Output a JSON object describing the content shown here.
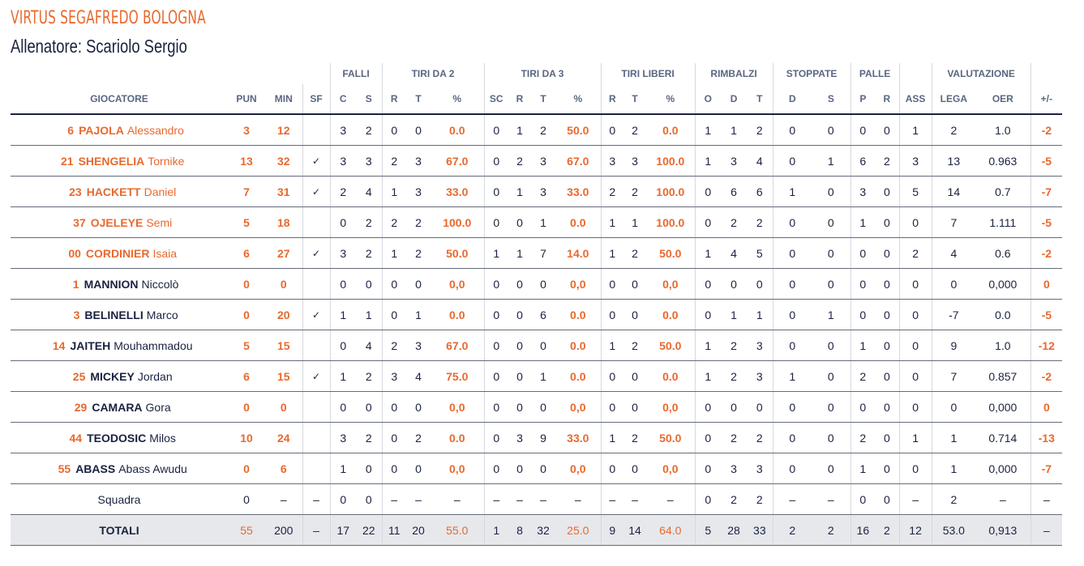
{
  "team": {
    "name": "VIRTUS SEGAFREDO BOLOGNA",
    "coach": "Allenatore: Scariolo Sergio"
  },
  "headers": {
    "groups": {
      "falli": "FALLI",
      "tiri2": "TIRI DA 2",
      "tiri3": "TIRI DA 3",
      "liberi": "TIRI LIBERI",
      "rimbalzi": "RIMBALZI",
      "stoppate": "STOPPATE",
      "palle": "PALLE",
      "valutazione": "VALUTAZIONE"
    },
    "columns": [
      "GIOCATORE",
      "PUN",
      "MIN",
      "SF",
      "C",
      "S",
      "R",
      "T",
      "%",
      "SC",
      "R",
      "T",
      "%",
      "R",
      "T",
      "%",
      "O",
      "D",
      "T",
      "D",
      "S",
      "P",
      "R",
      "ASS",
      "LEGA",
      "OER",
      "+/-"
    ]
  },
  "players": [
    {
      "num": "6",
      "last": "PAJOLA",
      "first": "Alessandro",
      "style": "orange",
      "stats": [
        "3",
        "12",
        "",
        "3",
        "2",
        "0",
        "0",
        "0.0",
        "0",
        "1",
        "2",
        "50.0",
        "0",
        "2",
        "0.0",
        "1",
        "1",
        "2",
        "0",
        "0",
        "0",
        "0",
        "1",
        "2",
        "1.0",
        "-2"
      ]
    },
    {
      "num": "21",
      "last": "SHENGELIA",
      "first": "Tornike",
      "style": "orange",
      "stats": [
        "13",
        "32",
        "✓",
        "3",
        "3",
        "2",
        "3",
        "67.0",
        "0",
        "2",
        "3",
        "67.0",
        "3",
        "3",
        "100.0",
        "1",
        "3",
        "4",
        "0",
        "1",
        "6",
        "2",
        "3",
        "13",
        "0.963",
        "-5"
      ]
    },
    {
      "num": "23",
      "last": "HACKETT",
      "first": "Daniel",
      "style": "orange",
      "stats": [
        "7",
        "31",
        "✓",
        "2",
        "4",
        "1",
        "3",
        "33.0",
        "0",
        "1",
        "3",
        "33.0",
        "2",
        "2",
        "100.0",
        "0",
        "6",
        "6",
        "1",
        "0",
        "3",
        "0",
        "5",
        "14",
        "0.7",
        "-7"
      ]
    },
    {
      "num": "37",
      "last": "OJELEYE",
      "first": "Semi",
      "style": "orange",
      "stats": [
        "5",
        "18",
        "",
        "0",
        "2",
        "2",
        "2",
        "100.0",
        "0",
        "0",
        "1",
        "0.0",
        "1",
        "1",
        "100.0",
        "0",
        "2",
        "2",
        "0",
        "0",
        "1",
        "0",
        "0",
        "7",
        "1.111",
        "-5"
      ]
    },
    {
      "num": "00",
      "last": "CORDINIER",
      "first": "Isaia",
      "style": "orange",
      "stats": [
        "6",
        "27",
        "✓",
        "3",
        "2",
        "1",
        "2",
        "50.0",
        "1",
        "1",
        "7",
        "14.0",
        "1",
        "2",
        "50.0",
        "1",
        "4",
        "5",
        "0",
        "0",
        "0",
        "0",
        "2",
        "4",
        "0.6",
        "-2"
      ]
    },
    {
      "num": "1",
      "last": "MANNION",
      "first": "Niccolò",
      "style": "dark",
      "stats": [
        "0",
        "0",
        "",
        "0",
        "0",
        "0",
        "0",
        "0,0",
        "0",
        "0",
        "0",
        "0,0",
        "0",
        "0",
        "0,0",
        "0",
        "0",
        "0",
        "0",
        "0",
        "0",
        "0",
        "0",
        "0",
        "0,000",
        "0"
      ]
    },
    {
      "num": "3",
      "last": "BELINELLI",
      "first": "Marco",
      "style": "dark",
      "stats": [
        "0",
        "20",
        "✓",
        "1",
        "1",
        "0",
        "1",
        "0.0",
        "0",
        "0",
        "6",
        "0.0",
        "0",
        "0",
        "0.0",
        "0",
        "1",
        "1",
        "0",
        "1",
        "0",
        "0",
        "0",
        "-7",
        "0.0",
        "-5"
      ]
    },
    {
      "num": "14",
      "last": "JAITEH",
      "first": "Mouhammadou",
      "style": "dark",
      "stats": [
        "5",
        "15",
        "",
        "0",
        "4",
        "2",
        "3",
        "67.0",
        "0",
        "0",
        "0",
        "0.0",
        "1",
        "2",
        "50.0",
        "1",
        "2",
        "3",
        "0",
        "0",
        "1",
        "0",
        "0",
        "9",
        "1.0",
        "-12"
      ]
    },
    {
      "num": "25",
      "last": "MICKEY",
      "first": "Jordan",
      "style": "dark",
      "stats": [
        "6",
        "15",
        "✓",
        "1",
        "2",
        "3",
        "4",
        "75.0",
        "0",
        "0",
        "1",
        "0.0",
        "0",
        "0",
        "0.0",
        "1",
        "2",
        "3",
        "1",
        "0",
        "2",
        "0",
        "0",
        "7",
        "0.857",
        "-2"
      ]
    },
    {
      "num": "29",
      "last": "CAMARA",
      "first": "Gora",
      "style": "dark",
      "stats": [
        "0",
        "0",
        "",
        "0",
        "0",
        "0",
        "0",
        "0,0",
        "0",
        "0",
        "0",
        "0,0",
        "0",
        "0",
        "0,0",
        "0",
        "0",
        "0",
        "0",
        "0",
        "0",
        "0",
        "0",
        "0",
        "0,000",
        "0"
      ]
    },
    {
      "num": "44",
      "last": "TEODOSIC",
      "first": "Milos",
      "style": "dark",
      "stats": [
        "10",
        "24",
        "",
        "3",
        "2",
        "0",
        "2",
        "0.0",
        "0",
        "3",
        "9",
        "33.0",
        "1",
        "2",
        "50.0",
        "0",
        "2",
        "2",
        "0",
        "0",
        "2",
        "0",
        "1",
        "1",
        "0.714",
        "-13"
      ]
    },
    {
      "num": "55",
      "last": "ABASS",
      "first": "Abass Awudu",
      "style": "dark",
      "stats": [
        "0",
        "6",
        "",
        "1",
        "0",
        "0",
        "0",
        "0,0",
        "0",
        "0",
        "0",
        "0,0",
        "0",
        "0",
        "0,0",
        "0",
        "3",
        "3",
        "0",
        "0",
        "1",
        "0",
        "0",
        "1",
        "0,000",
        "-7"
      ]
    }
  ],
  "squadra": {
    "label": "Squadra",
    "stats": [
      "0",
      "–",
      "–",
      "0",
      "0",
      "–",
      "–",
      "–",
      "–",
      "–",
      "–",
      "–",
      "–",
      "–",
      "–",
      "0",
      "2",
      "2",
      "–",
      "–",
      "0",
      "0",
      "–",
      "2",
      "–",
      "–"
    ]
  },
  "totals": {
    "label": "TOTALI",
    "stats": [
      "55",
      "200",
      "–",
      "17",
      "22",
      "11",
      "20",
      "55.0",
      "1",
      "8",
      "32",
      "25.0",
      "9",
      "14",
      "64.0",
      "5",
      "28",
      "33",
      "2",
      "2",
      "16",
      "2",
      "12",
      "53.0",
      "0,913",
      "–"
    ]
  }
}
